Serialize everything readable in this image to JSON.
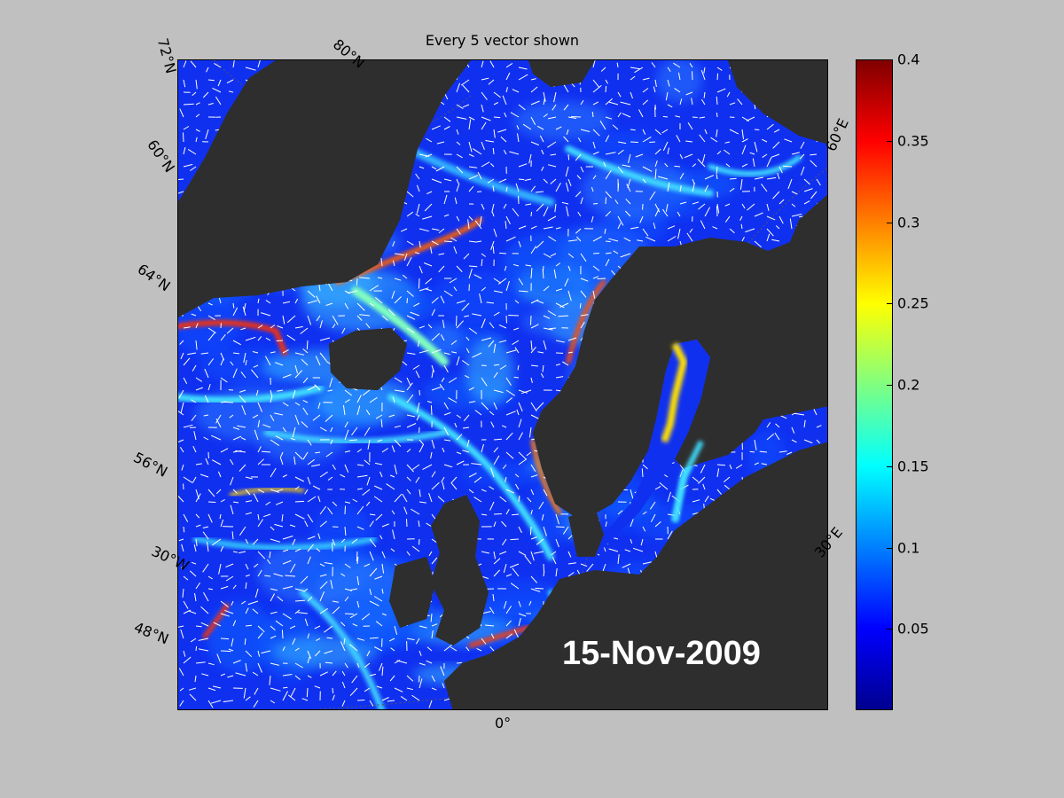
{
  "title": "Every 5 vector shown",
  "date": "15-Nov-2009",
  "labels": {
    "lat_72n": "72°N",
    "lat_80n": "80°N",
    "lat_60n": "60°N",
    "lat_64n": "64°N",
    "lat_56n": "56°N",
    "lon_30w": "30°W",
    "lat_48n": "48°N",
    "lon_0": "0°",
    "lon_30e": "30°E",
    "lon_60e": "60°E"
  },
  "colorbar": {
    "min": 0,
    "max": 0.4,
    "ticks": [
      "0.05",
      "0.1",
      "0.15",
      "0.2",
      "0.25",
      "0.3",
      "0.35",
      "0.4"
    ],
    "colors": [
      "#00008f",
      "#0000ff",
      "#0080ff",
      "#00ffff",
      "#80ff80",
      "#ffff00",
      "#ff8000",
      "#ff0000",
      "#800000"
    ]
  },
  "colors": {
    "land": "#2e2e2e",
    "background": "#c0c0c0",
    "ocean": "#1a3cff",
    "vector": "#ffffff"
  }
}
